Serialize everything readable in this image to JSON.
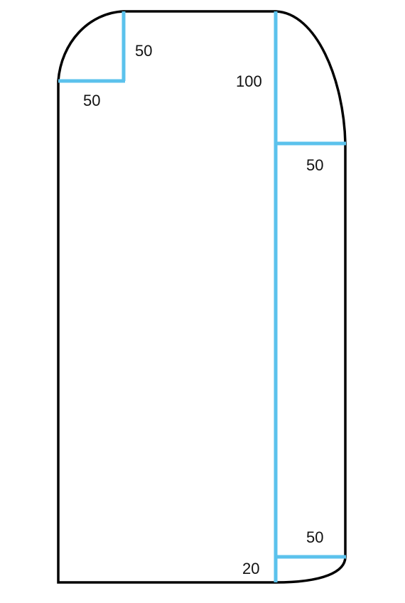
{
  "colors": {
    "outline": "#000000",
    "measure": "#5BC2EC",
    "label": "#111111",
    "background": "#ffffff"
  },
  "labels": {
    "top_left_vertical": "50",
    "top_left_horizontal": "50",
    "top_right_vertical": "100",
    "top_right_horizontal": "50",
    "bottom_right_horizontal": "50",
    "bottom_right_vertical": "20"
  }
}
